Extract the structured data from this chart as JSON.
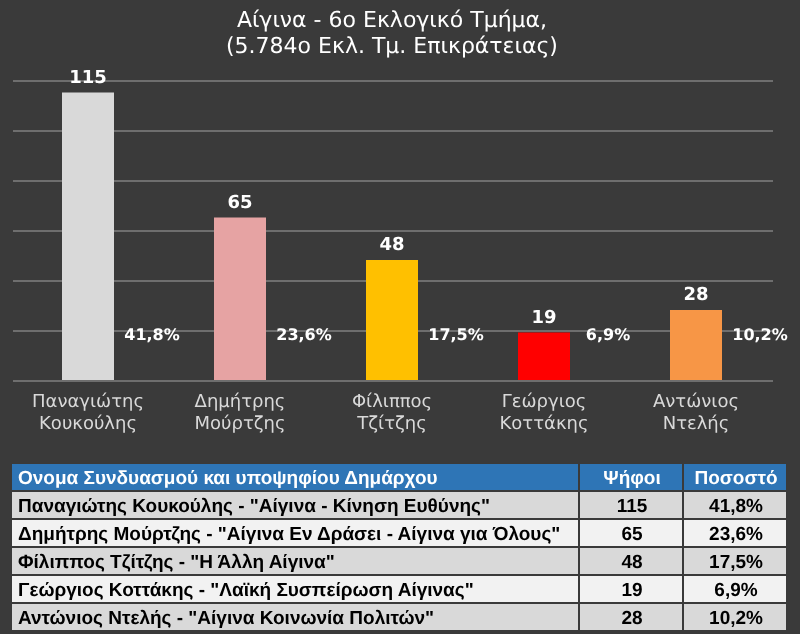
{
  "chart_data": [
    {
      "type": "bar",
      "title": "Αίγινα - 6ο Εκλογικό Τμήμα,\n(5.784ο Εκλ. Τμ. Επικράτειας)",
      "categories": [
        "Παναγιώτης Κουκούλης",
        "Δημήτρης Μούρτζης",
        "Φίλιππος Τζίτζης",
        "Γεώργιος Κοττάκης",
        "Αντώνιος Ντελής"
      ],
      "values": [
        115,
        65,
        48,
        19,
        28
      ],
      "colors": [
        "#d9d9d9",
        "#e6a3a3",
        "#ffc000",
        "#ff0000",
        "#f79646"
      ],
      "data_labels": true,
      "ylim": [
        0,
        120
      ],
      "grid": "y",
      "tick_labels": "x",
      "annotations": [
        "41,8%",
        "23,6%",
        "17,5%",
        "6,9%",
        "10,2%"
      ]
    },
    {
      "type": "other",
      "categories": [
        "Ονομα Συνδυασμού και υποψηφίου Δημάρχου",
        "Ψήφοι",
        "Ποσοστό"
      ],
      "annotations": [
        "Παναγιώτης Κουκούλης - \"Αίγινα - Κίνηση Ευθύνης\"",
        "115",
        "41,8%",
        "Δημήτρης Μούρτζης - \"Αίγινα  Εν Δράσει - Αίγινα για Όλους\"",
        "65",
        "23,6%",
        "Φίλιππος Τζίτζης - \"Η Άλλη Αίγινα\"",
        "48",
        "17,5%",
        "Γεώργιος Κοττάκης - \"Λαϊκή Συσπείρωση Αίγινας\"",
        "19",
        "6,9%",
        "Αντώνιος Ντελής - \"Αίγινα Κοινωνία Πολιτών\"",
        "28",
        "10,2%"
      ]
    }
  ]
}
